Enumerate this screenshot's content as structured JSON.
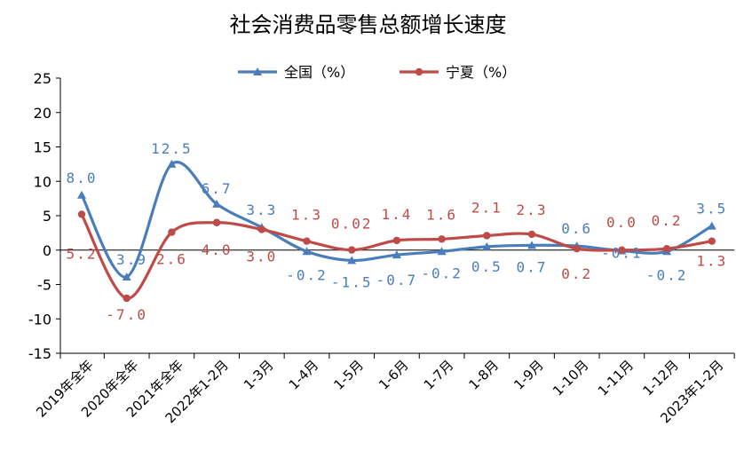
{
  "chart_data": {
    "type": "line",
    "title": "社会消费品零售总额增长速度",
    "categories": [
      "2019年全年",
      "2020年全年",
      "2021年全年",
      "2022年1-2月",
      "1-3月",
      "1-4月",
      "1-5月",
      "1-6月",
      "1-7月",
      "1-8月",
      "1-9月",
      "1-10月",
      "1-11月",
      "1-12月",
      "2023年1-2月"
    ],
    "series": [
      {
        "name": "全国（%）",
        "color": "#4a7ebb",
        "marker": "triangle",
        "values": [
          8.0,
          -3.9,
          12.5,
          6.7,
          3.3,
          -0.2,
          -1.5,
          -0.7,
          -0.2,
          0.5,
          0.7,
          0.6,
          -0.1,
          -0.2,
          3.5
        ],
        "labels": [
          "8.0",
          "-3.9",
          "12.5",
          "6.7",
          "3.3",
          "-0.2",
          "-1.5",
          "-0.7",
          "-0.2",
          "0.5",
          "0.7",
          "0.6",
          "-0.1",
          "-0.2",
          "3.5"
        ]
      },
      {
        "name": "宁夏（%）",
        "color": "#be4b48",
        "marker": "circle",
        "values": [
          5.2,
          -7.0,
          2.6,
          4.0,
          3.0,
          1.3,
          0.02,
          1.4,
          1.6,
          2.1,
          2.3,
          0.2,
          0.0,
          0.2,
          1.3
        ],
        "labels": [
          "5.2",
          "-7.0",
          "2.6",
          "4.0",
          "3.0",
          "1.3",
          "0.02",
          "1.4",
          "1.6",
          "2.1",
          "2.3",
          "0.2",
          "0.0",
          "0.2",
          "1.3"
        ]
      }
    ],
    "ylim": [
      -15,
      25
    ],
    "yticks": [
      -15,
      -10,
      -5,
      0,
      5,
      10,
      15,
      20,
      25
    ],
    "grid": false,
    "legend_position": "top-center",
    "smooth": true
  }
}
